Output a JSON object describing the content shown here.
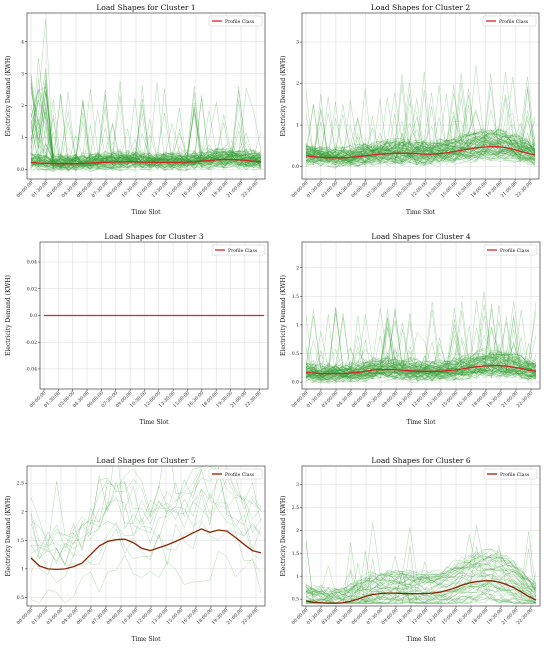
{
  "colors": {
    "individual": "#2e9a2e",
    "profile_red": "#d62728",
    "profile_brown": "#8b2500",
    "grid": "#d8d8d8",
    "axis": "#222222"
  },
  "x_tick_labels": [
    "00:00:00",
    "01:30:00",
    "03:00:00",
    "04:30:00",
    "06:00:00",
    "07:30:00",
    "09:00:00",
    "10:30:00",
    "12:00:00",
    "13:30:00",
    "15:00:00",
    "16:30:00",
    "18:00:00",
    "19:30:00",
    "21:00:00",
    "22:30:00"
  ],
  "chart_data": [
    {
      "type": "line",
      "title": "Load Shapes for Cluster 1",
      "xlabel": "Time Slot",
      "ylabel": "Electricity Demand (KWH)",
      "ylim": [
        -0.3,
        4.9
      ],
      "yticks": [
        0,
        1,
        2,
        3,
        4
      ],
      "grid": true,
      "legend": "top-right",
      "density": "dense",
      "series": [
        {
          "name": "Profile Class",
          "color": "profile_red",
          "values": [
            0.22,
            0.2,
            0.19,
            0.18,
            0.18,
            0.18,
            0.18,
            0.19,
            0.2,
            0.21,
            0.22,
            0.23,
            0.24,
            0.24,
            0.24,
            0.23,
            0.22,
            0.22,
            0.22,
            0.22,
            0.22,
            0.23,
            0.24,
            0.26,
            0.28,
            0.3,
            0.31,
            0.31,
            0.3,
            0.28,
            0.26,
            0.24
          ]
        }
      ]
    },
    {
      "type": "line",
      "title": "Load Shapes for Cluster 2",
      "xlabel": "Time Slot",
      "ylabel": "Electricity Demand (KWH)",
      "ylim": [
        -0.3,
        3.7
      ],
      "yticks": [
        0,
        1,
        2,
        3
      ],
      "grid": true,
      "legend": "top-right",
      "density": "dense",
      "series": [
        {
          "name": "Profile Class",
          "color": "profile_red",
          "values": [
            0.26,
            0.24,
            0.22,
            0.21,
            0.21,
            0.21,
            0.22,
            0.24,
            0.26,
            0.28,
            0.3,
            0.31,
            0.32,
            0.32,
            0.32,
            0.31,
            0.3,
            0.3,
            0.31,
            0.33,
            0.36,
            0.39,
            0.42,
            0.45,
            0.47,
            0.48,
            0.48,
            0.46,
            0.42,
            0.37,
            0.32,
            0.28
          ]
        }
      ]
    },
    {
      "type": "line",
      "title": "Load Shapes for Cluster 3",
      "xlabel": "Time Slot",
      "ylabel": "Electricity Demand (KWH)",
      "ylim": [
        -0.055,
        0.055
      ],
      "yticks": [
        -0.04,
        -0.02,
        0.0,
        0.02,
        0.04
      ],
      "grid": true,
      "legend": "top-right",
      "density": "none",
      "series": [
        {
          "name": "Profile Class",
          "color": "profile_red",
          "values": [
            0,
            0,
            0,
            0,
            0,
            0,
            0,
            0,
            0,
            0,
            0,
            0,
            0,
            0,
            0,
            0,
            0,
            0,
            0,
            0,
            0,
            0,
            0,
            0,
            0,
            0,
            0,
            0,
            0,
            0,
            0,
            0
          ]
        }
      ]
    },
    {
      "type": "line",
      "title": "Load Shapes for Cluster 4",
      "xlabel": "Time Slot",
      "ylabel": "Electricity Demand (KWH)",
      "ylim": [
        -0.12,
        2.45
      ],
      "yticks": [
        0.0,
        0.5,
        1.0,
        1.5,
        2.0
      ],
      "grid": true,
      "legend": "top-right",
      "density": "dense",
      "series": [
        {
          "name": "Profile Class",
          "color": "profile_red",
          "values": [
            0.17,
            0.16,
            0.15,
            0.15,
            0.15,
            0.15,
            0.16,
            0.17,
            0.19,
            0.21,
            0.22,
            0.22,
            0.22,
            0.21,
            0.2,
            0.19,
            0.19,
            0.19,
            0.19,
            0.2,
            0.21,
            0.23,
            0.25,
            0.27,
            0.28,
            0.29,
            0.29,
            0.28,
            0.26,
            0.24,
            0.21,
            0.19
          ]
        }
      ]
    },
    {
      "type": "line",
      "title": "Load Shapes for Cluster 5",
      "xlabel": "Time Slot",
      "ylabel": "Electricity Demand (KWH)",
      "ylim": [
        0.35,
        2.8
      ],
      "yticks": [
        0.5,
        1.0,
        1.5,
        2.0,
        2.5
      ],
      "grid": true,
      "legend": "top-right",
      "density": "sparse",
      "series": [
        {
          "name": "Profile Class",
          "color": "profile_brown",
          "values": [
            1.19,
            1.05,
            1.0,
            0.99,
            1.0,
            1.04,
            1.1,
            1.25,
            1.4,
            1.48,
            1.51,
            1.52,
            1.46,
            1.36,
            1.32,
            1.37,
            1.42,
            1.48,
            1.55,
            1.63,
            1.7,
            1.64,
            1.68,
            1.66,
            1.55,
            1.43,
            1.32,
            1.28
          ]
        }
      ]
    },
    {
      "type": "line",
      "title": "Load Shapes for Cluster 6",
      "xlabel": "Time Slot",
      "ylabel": "Electricity Demand (KWH)",
      "ylim": [
        0.35,
        3.4
      ],
      "yticks": [
        0.5,
        1.0,
        1.5,
        2.0,
        2.5,
        3.0
      ],
      "grid": true,
      "legend": "top-right",
      "density": "medium",
      "series": [
        {
          "name": "Profile Class",
          "color": "profile_brown",
          "values": [
            0.46,
            0.43,
            0.42,
            0.41,
            0.41,
            0.42,
            0.45,
            0.5,
            0.56,
            0.6,
            0.62,
            0.63,
            0.63,
            0.62,
            0.62,
            0.62,
            0.62,
            0.63,
            0.65,
            0.69,
            0.74,
            0.8,
            0.85,
            0.88,
            0.9,
            0.9,
            0.87,
            0.82,
            0.75,
            0.66,
            0.56,
            0.48
          ]
        }
      ]
    }
  ]
}
